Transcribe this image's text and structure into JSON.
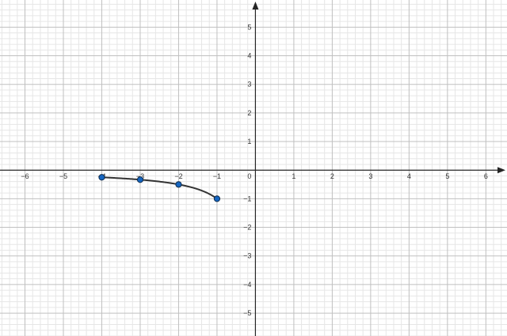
{
  "chart_data": {
    "type": "line",
    "title": "",
    "xlabel": "",
    "ylabel": "",
    "xlim": [
      -6.65,
      6.55
    ],
    "ylim": [
      -5.8,
      5.95
    ],
    "grid": true,
    "x_ticks": [
      -6,
      -5,
      -4,
      -3,
      -2,
      -1,
      1,
      2,
      3,
      4,
      5,
      6
    ],
    "y_ticks": [
      -5,
      -4,
      -3,
      -2,
      -1,
      1,
      2,
      3,
      4,
      5
    ],
    "origin_label": "0",
    "curve": {
      "function": "y = 1/x",
      "domain": [
        -4,
        -1
      ],
      "color": "#333333"
    },
    "points": [
      {
        "x": -4,
        "y": -0.25
      },
      {
        "x": -3,
        "y": -0.3333
      },
      {
        "x": -2,
        "y": -0.5
      },
      {
        "x": -1,
        "y": -1
      }
    ],
    "point_color": "#1565c0",
    "axis_color": "#252525",
    "major_grid_color": "#c0c0c0",
    "minor_grid_color": "#e6e6e6"
  }
}
